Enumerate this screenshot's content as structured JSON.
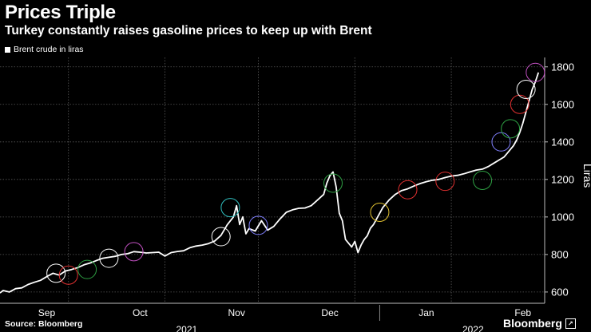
{
  "header": {
    "title": "Prices Triple",
    "subtitle": "Turkey constantly raises gasoline prices to keep up with Brent"
  },
  "footer": {
    "source": "Source: Bloomberg",
    "brand": "Bloomberg",
    "brand_icon": "bloomberg-logo-icon"
  },
  "chart_data": {
    "type": "line",
    "title": "Prices Triple",
    "subtitle": "Turkey constantly raises gasoline prices to keep up with Brent",
    "ylabel": "Liras",
    "xlabel": "",
    "ylim": [
      540,
      1850
    ],
    "yticks": [
      600,
      800,
      1000,
      1200,
      1400,
      1600,
      1800
    ],
    "xlim": [
      0,
      175
    ],
    "xticks": [
      {
        "label": "Sep",
        "pos": 15
      },
      {
        "label": "Oct",
        "pos": 45
      },
      {
        "label": "Nov",
        "pos": 76
      },
      {
        "label": "Dec",
        "pos": 106
      },
      {
        "label": "Jan",
        "pos": 137
      },
      {
        "label": "Feb",
        "pos": 168
      }
    ],
    "year_labels": [
      {
        "label": "2021",
        "pos": 60
      },
      {
        "label": "2022",
        "pos": 152
      }
    ],
    "year_divider": 122,
    "gridlines_x": [
      22,
      53,
      83,
      114,
      145
    ],
    "legend": [
      {
        "name": "Brent crude in liras",
        "color": "#ffffff",
        "position": "top-left"
      }
    ],
    "series": [
      {
        "name": "Brent crude in liras",
        "color": "#ffffff",
        "x": [
          0,
          1,
          3,
          5,
          7,
          9,
          11,
          13,
          15,
          17,
          19,
          21,
          23,
          25,
          27,
          29,
          31,
          33,
          35,
          37,
          39,
          41,
          43,
          45,
          47,
          49,
          51,
          53,
          55,
          57,
          59,
          61,
          63,
          65,
          67,
          69,
          71,
          73,
          75,
          76,
          77,
          78,
          79,
          80,
          82,
          84,
          85,
          86,
          88,
          90,
          92,
          94,
          96,
          98,
          100,
          102,
          104,
          105,
          106,
          107,
          108,
          109,
          110,
          111,
          112,
          113,
          114,
          115,
          116,
          117,
          118,
          119,
          120,
          121,
          122,
          123,
          125,
          127,
          129,
          131,
          133,
          135,
          137,
          139,
          141,
          143,
          145,
          147,
          149,
          151,
          153,
          155,
          157,
          159,
          161,
          162,
          163,
          164,
          165,
          166,
          167,
          168,
          169,
          170,
          171,
          172,
          173
        ],
        "values": [
          595,
          608,
          600,
          618,
          622,
          640,
          652,
          662,
          682,
          700,
          690,
          712,
          720,
          730,
          745,
          755,
          768,
          780,
          785,
          790,
          800,
          804,
          815,
          812,
          808,
          810,
          812,
          792,
          810,
          816,
          820,
          836,
          845,
          850,
          858,
          872,
          902,
          958,
          1000,
          1060,
          960,
          1000,
          910,
          938,
          925,
          980,
          955,
          930,
          950,
          990,
          1025,
          1038,
          1046,
          1048,
          1060,
          1090,
          1120,
          1180,
          1220,
          1240,
          1160,
          1020,
          980,
          880,
          860,
          840,
          870,
          810,
          850,
          880,
          900,
          940,
          960,
          990,
          1020,
          1050,
          1090,
          1120,
          1140,
          1150,
          1165,
          1178,
          1188,
          1196,
          1200,
          1210,
          1218,
          1222,
          1230,
          1240,
          1250,
          1255,
          1270,
          1290,
          1310,
          1320,
          1340,
          1360,
          1380,
          1410,
          1450,
          1500,
          1560,
          1620,
          1680,
          1720,
          1770
        ]
      }
    ],
    "annotations": [
      {
        "type": "price-hike-circle",
        "x": 18,
        "y": 700,
        "color": "#ffffff"
      },
      {
        "type": "price-hike-circle",
        "x": 22,
        "y": 690,
        "color": "#e03030"
      },
      {
        "type": "price-hike-circle",
        "x": 28,
        "y": 720,
        "color": "#2ea043"
      },
      {
        "type": "price-hike-circle",
        "x": 35,
        "y": 780,
        "color": "#ffffff"
      },
      {
        "type": "price-hike-circle",
        "x": 43,
        "y": 815,
        "color": "#c050c0"
      },
      {
        "type": "price-hike-circle",
        "x": 71,
        "y": 895,
        "color": "#ffffff"
      },
      {
        "type": "price-hike-circle",
        "x": 74,
        "y": 1050,
        "color": "#30c0c0"
      },
      {
        "type": "price-hike-circle",
        "x": 83,
        "y": 955,
        "color": "#8080ff"
      },
      {
        "type": "price-hike-circle",
        "x": 107,
        "y": 1180,
        "color": "#2ea043"
      },
      {
        "type": "price-hike-circle",
        "x": 122,
        "y": 1025,
        "color": "#e0c030"
      },
      {
        "type": "price-hike-circle",
        "x": 131,
        "y": 1145,
        "color": "#e03030"
      },
      {
        "type": "price-hike-circle",
        "x": 143,
        "y": 1190,
        "color": "#e03030"
      },
      {
        "type": "price-hike-circle",
        "x": 155,
        "y": 1195,
        "color": "#2ea043"
      },
      {
        "type": "price-hike-circle",
        "x": 161,
        "y": 1400,
        "color": "#8080ff"
      },
      {
        "type": "price-hike-circle",
        "x": 164,
        "y": 1470,
        "color": "#2ea043"
      },
      {
        "type": "price-hike-circle",
        "x": 167,
        "y": 1600,
        "color": "#e03030"
      },
      {
        "type": "price-hike-circle",
        "x": 169,
        "y": 1680,
        "color": "#ffffff"
      },
      {
        "type": "price-hike-circle",
        "x": 172,
        "y": 1770,
        "color": "#c050c0"
      }
    ]
  }
}
